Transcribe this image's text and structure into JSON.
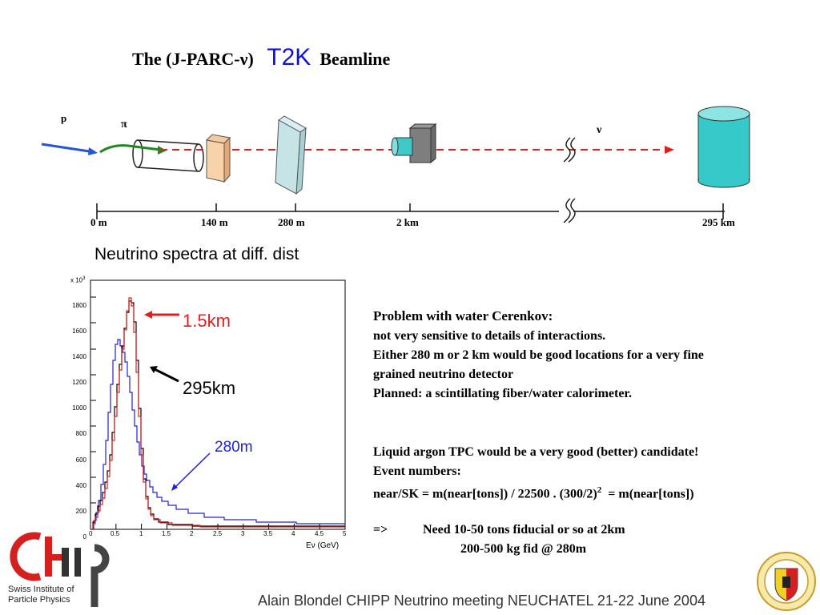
{
  "title": {
    "prefix": "The (J-PARC-ν)",
    "highlight": "T2K",
    "suffix": "Beamline"
  },
  "beamline": {
    "particle_p": "p",
    "particle_pi": "π",
    "particle_nu": "ν",
    "distance_labels": [
      "0 m",
      "140 m",
      "280 m",
      "2 km",
      "295 km"
    ]
  },
  "spectra": {
    "heading": "Neutrino spectra at diff. dist",
    "label_1_5km": "1.5km",
    "label_295km": "295km",
    "label_280m": "280m",
    "y_multiplier": "x 10",
    "y_exponent": "3",
    "y_ticks": [
      "1800",
      "1600",
      "1400",
      "1200",
      "1000",
      "800",
      "600",
      "400",
      "200",
      "0"
    ],
    "x_ticks": [
      "0",
      "0.5",
      "1",
      "1.5",
      "2",
      "2.5",
      "3",
      "3.5",
      "4",
      "4.5",
      "5"
    ],
    "x_axis_label": "Eν (GeV)",
    "colors": {
      "red": "#e02020",
      "black": "#000000",
      "blue": "#2020e0"
    }
  },
  "notes": {
    "p1_heading": "Problem with water Cerenkov:",
    "p1_line1": "not very sensitive to details of interactions.",
    "p1_line2": "Either 280 m or 2 km would be good locations for a very fine",
    "p1_line3": "grained neutrino detector",
    "p1_line4": "Planned: a scintillating fiber/water calorimeter.",
    "p2_line1": "Liquid argon TPC would be a very good (better) candidate!",
    "p2_line2": "Event numbers:",
    "p2_line3_a": "near/SK = m(near[tons]) / 22500 . (300/2)",
    "p2_line3_sup": "2",
    "p2_line3_b": "  = m(near[tons])",
    "p3_arrow": "=>",
    "p3_line1": "Need 10-50 tons fiducial or so  at 2km",
    "p3_line2": "200-500 kg fid @ 280m"
  },
  "logo": {
    "line1": "Swiss Institute of",
    "line2": "Particle Physics"
  },
  "footer": {
    "text": "Alain Blondel CHIPP Neutrino meeting NEUCHATEL 21-22 June 2004"
  }
}
